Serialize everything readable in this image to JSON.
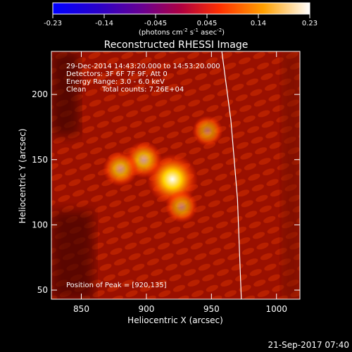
{
  "chart_data": {
    "type": "heatmap",
    "title": "Reconstructed RHESSI Image",
    "xlabel": "Heliocentric X (arcsec)",
    "ylabel": "Heliocentric Y (arcsec)",
    "xlim": [
      827,
      1018
    ],
    "ylim": [
      43,
      233
    ],
    "xticks": [
      850,
      900,
      950,
      1000
    ],
    "yticks": [
      50,
      100,
      150,
      200
    ],
    "colorbar": {
      "colormap": "hot/fire",
      "range": [
        -0.23,
        0.23
      ],
      "tick_labels": [
        "-0.23",
        "-0.14",
        "-0.045",
        "0.045",
        "0.14",
        "0.23"
      ],
      "unit_prefix": "(photons cm",
      "unit_exp1": "-2",
      "unit_mid": " s",
      "unit_exp2": "-1",
      "unit_mid2": " asec",
      "unit_exp3": "-2",
      "unit_suffix": ")"
    },
    "annotations": {
      "time_range": "29-Dec-2014 14:43:20.000 to 14:53:20.000",
      "detectors": "Detectors: 3F 6F 7F 9F, Att 0",
      "energy": "Energy Range: 3.0 - 6.0 keV",
      "method": "Clean",
      "counts": "Total counts: 7.26E+04",
      "peak": "Position of Peak = [920,135]"
    },
    "sources": [
      {
        "x": 920,
        "y": 135,
        "intensity": 1.0
      },
      {
        "x": 898,
        "y": 150,
        "intensity": 0.55
      },
      {
        "x": 880,
        "y": 143,
        "intensity": 0.5
      },
      {
        "x": 927,
        "y": 114,
        "intensity": 0.4
      },
      {
        "x": 947,
        "y": 172,
        "intensity": 0.35
      }
    ],
    "limb": [
      [
        958,
        233
      ],
      [
        965,
        180
      ],
      [
        970,
        120
      ],
      [
        973,
        43
      ]
    ]
  },
  "footer": {
    "date": "21-Sep-2017 07:40"
  }
}
